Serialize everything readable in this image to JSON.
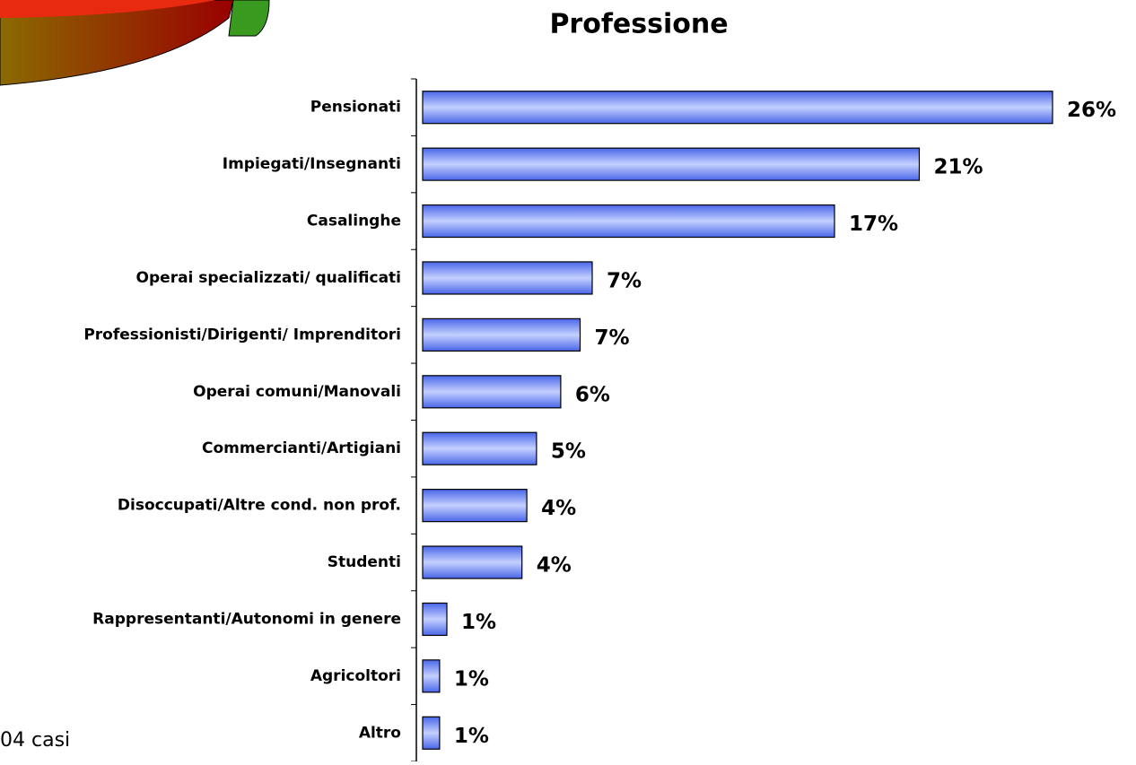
{
  "chart_data": {
    "type": "bar",
    "orientation": "horizontal",
    "title": "Professione",
    "categories": [
      "Pensionati",
      "Impiegati/Insegnanti",
      "Casalinghe",
      "Operai specializzati/ qualificati",
      "Professionisti/Dirigenti/ Imprenditori",
      "Operai comuni/Manovali",
      "Commercianti/Artigiani",
      "Disoccupati/Altre cond. non prof.",
      "Studenti",
      "Rappresentanti/Autonomi in genere",
      "Agricoltori",
      "Altro"
    ],
    "values": [
      26,
      20.5,
      17,
      7,
      6.5,
      5.7,
      4.7,
      4.3,
      4.1,
      1,
      0.7,
      0.7
    ],
    "value_labels": [
      "26%",
      "21%",
      "17%",
      "7%",
      "7%",
      "6%",
      "5%",
      "4%",
      "4%",
      "1%",
      "1%",
      "1%"
    ],
    "color": "#6f8df5",
    "xlim": [
      0,
      28
    ],
    "footnote": "04 casi"
  }
}
